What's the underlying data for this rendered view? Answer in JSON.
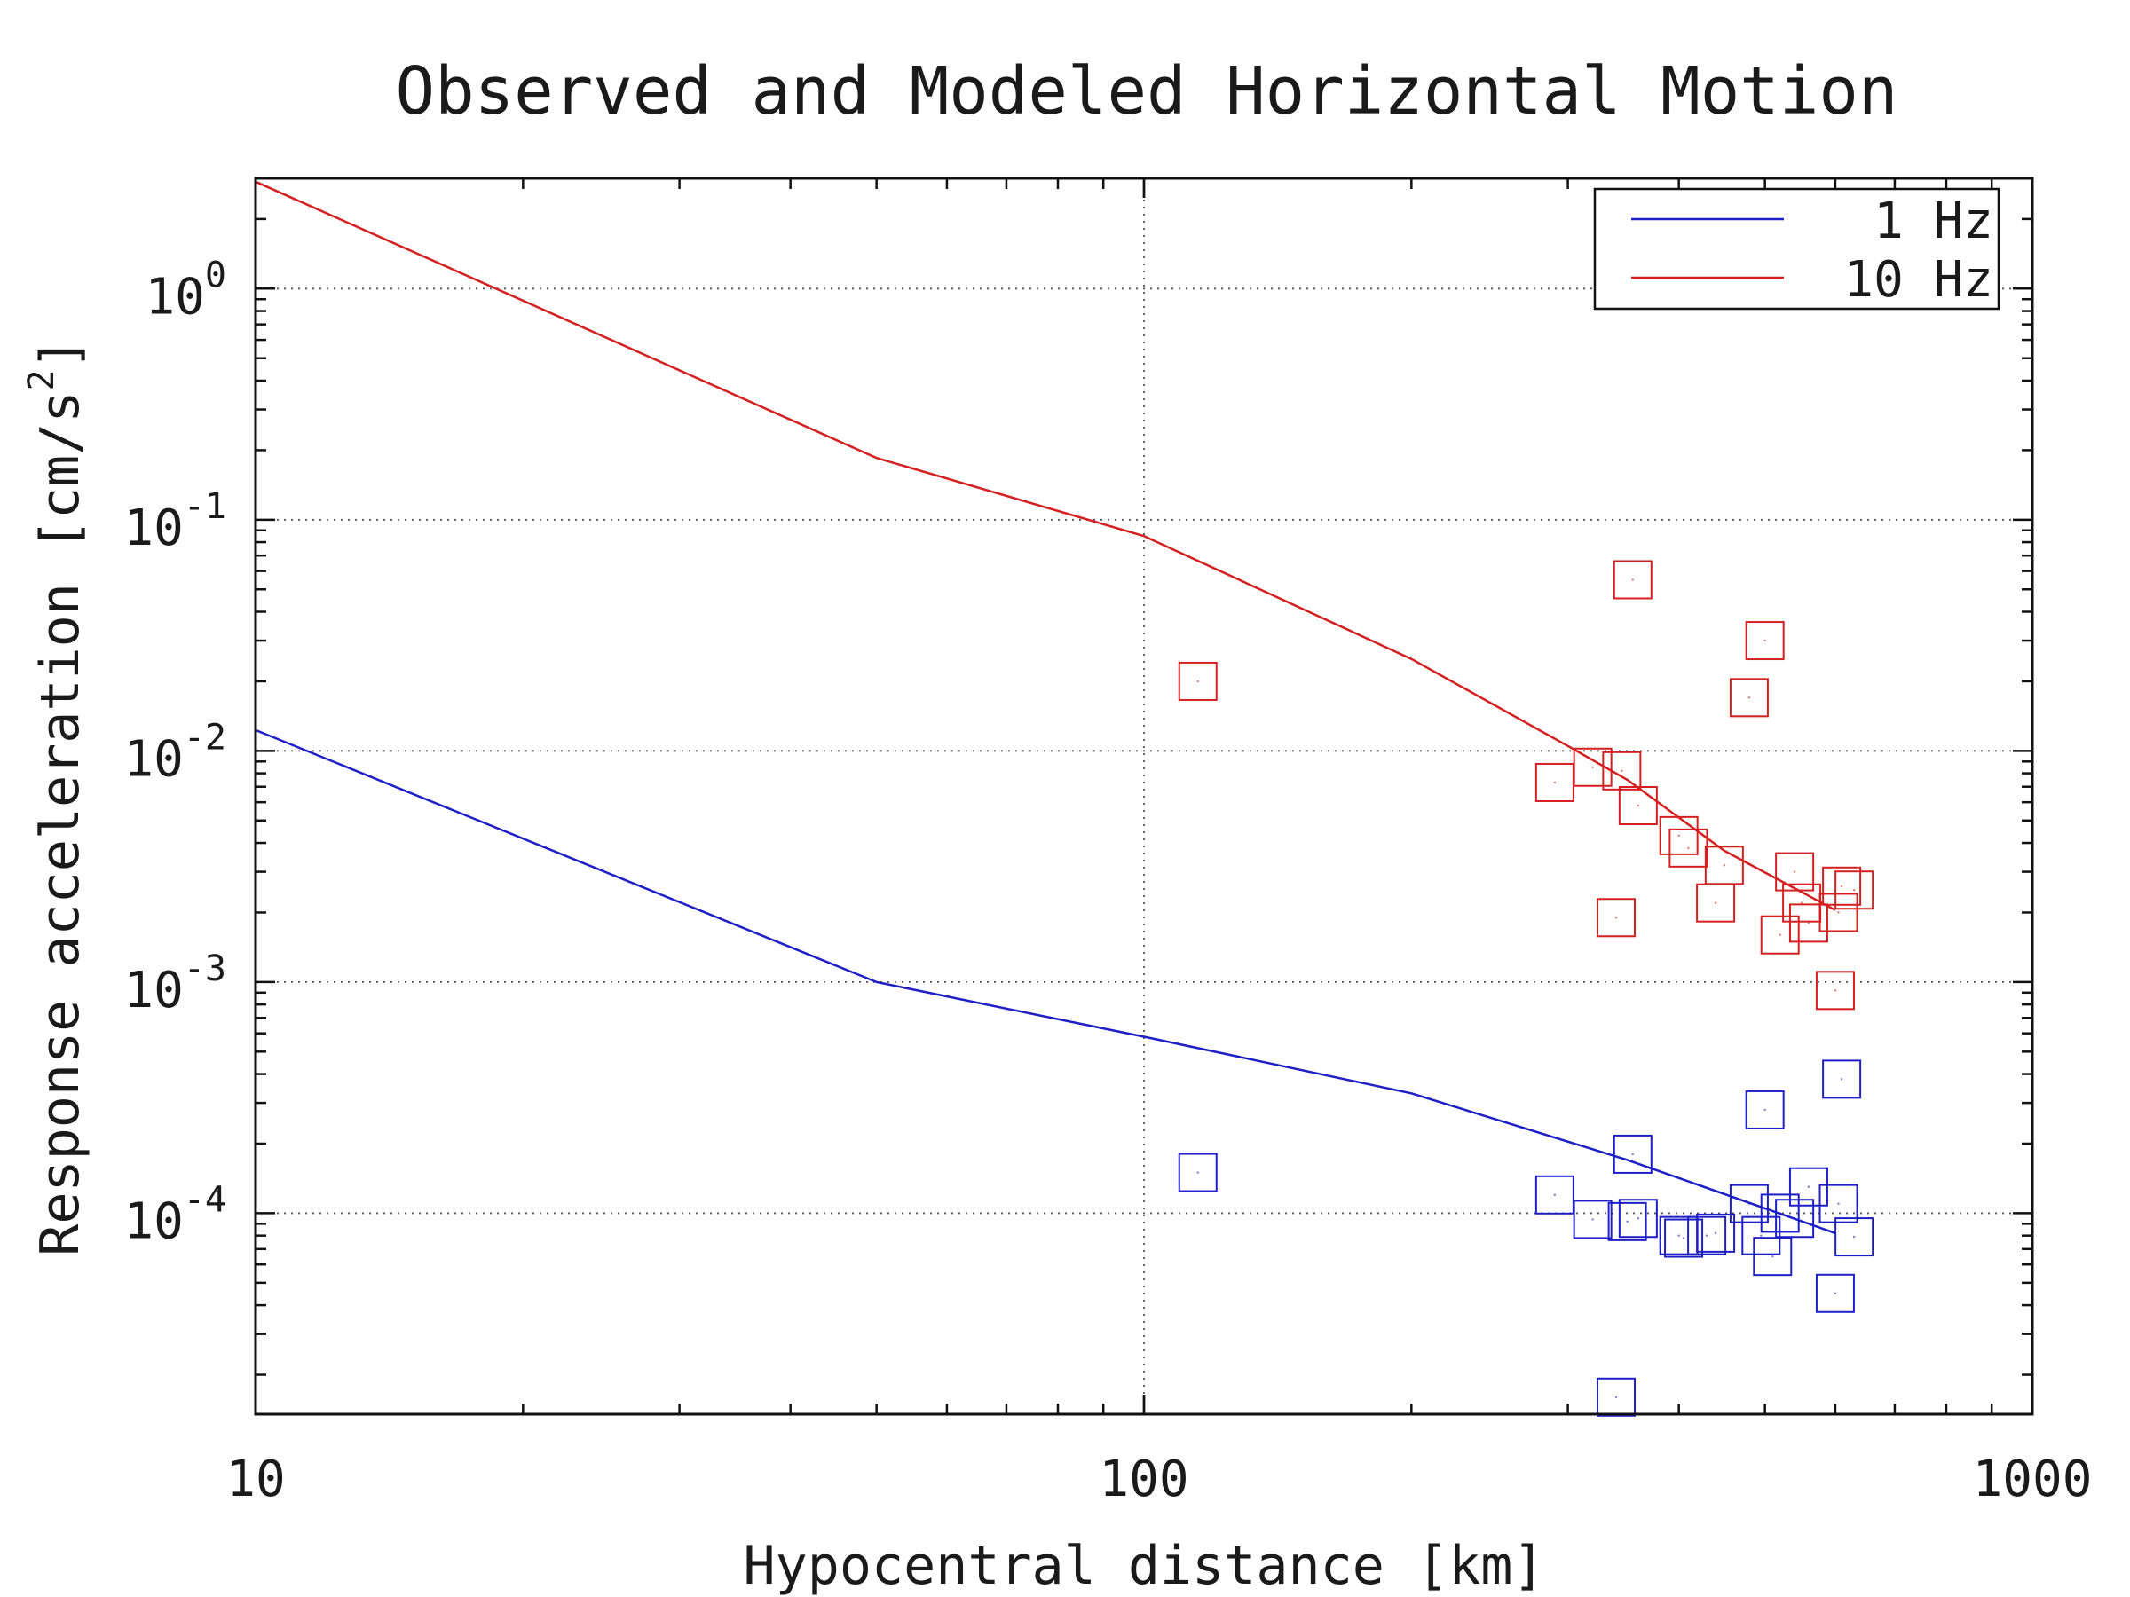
{
  "chart_data": {
    "type": "scatter",
    "title": "Observed and Modeled Horizontal Motion",
    "xlabel": "Hypocentral distance [km]",
    "ylabel": "Response acceleration [cm/s²]",
    "ylabel_parts": {
      "main": "Response acceleration [cm/s",
      "sup": "2",
      "end": "]"
    },
    "xscale": "log",
    "yscale": "log",
    "xlim": [
      10,
      1000
    ],
    "ylim": [
      1.35e-05,
      3.0
    ],
    "xticks": [
      {
        "value": 10,
        "label": "10"
      },
      {
        "value": 100,
        "label": "100"
      },
      {
        "value": 1000,
        "label": "1000"
      }
    ],
    "yticks": [
      {
        "value": 1,
        "base": "10",
        "exp": "0"
      },
      {
        "value": 0.1,
        "base": "10",
        "exp": "-1"
      },
      {
        "value": 0.01,
        "base": "10",
        "exp": "-2"
      },
      {
        "value": 0.001,
        "base": "10",
        "exp": "-3"
      },
      {
        "value": 0.0001,
        "base": "10",
        "exp": "-4"
      }
    ],
    "grid": true,
    "legend_position": "top-right",
    "series": [
      {
        "name": "1 Hz",
        "color": "#1f1fc8",
        "kind": "line",
        "x": [
          10,
          50,
          100,
          200,
          350,
          500,
          600
        ],
        "y": [
          0.0123,
          0.001,
          0.00058,
          0.00033,
          0.00017,
          0.000105,
          8.2e-05
        ]
      },
      {
        "name": "10 Hz",
        "color": "#d42020",
        "kind": "line",
        "x": [
          10,
          50,
          100,
          200,
          300,
          350,
          450,
          600
        ],
        "y": [
          2.9,
          0.185,
          0.085,
          0.025,
          0.0105,
          0.0075,
          0.0037,
          0.00205
        ]
      },
      {
        "kind": "markers",
        "marker": "square",
        "color": "#1f1fc8",
        "x": [
          115,
          290,
          320,
          350,
          360,
          355,
          400,
          405,
          430,
          440,
          480,
          495,
          500,
          510,
          520,
          540,
          560,
          600,
          605,
          610,
          630,
          340
        ],
        "y": [
          0.00015,
          0.00012,
          9.4e-05,
          9.2e-05,
          9.5e-05,
          0.00018,
          8e-05,
          7.8e-05,
          8e-05,
          8.2e-05,
          0.00011,
          8e-05,
          0.00028,
          6.5e-05,
          0.0001,
          9.5e-05,
          0.00013,
          4.5e-05,
          0.00011,
          0.00038,
          7.9e-05,
          1.6e-05
        ]
      },
      {
        "kind": "markers",
        "marker": "square",
        "color": "#d42020",
        "x": [
          115,
          290,
          320,
          345,
          355,
          360,
          340,
          400,
          410,
          440,
          450,
          480,
          500,
          520,
          540,
          550,
          560,
          600,
          610,
          605,
          630
        ],
        "y": [
          0.02,
          0.0073,
          0.0085,
          0.0082,
          0.055,
          0.0058,
          0.0019,
          0.0043,
          0.0038,
          0.0022,
          0.0032,
          0.017,
          0.03,
          0.0016,
          0.003,
          0.0022,
          0.0018,
          0.00092,
          0.0026,
          0.002,
          0.0025
        ]
      }
    ]
  }
}
